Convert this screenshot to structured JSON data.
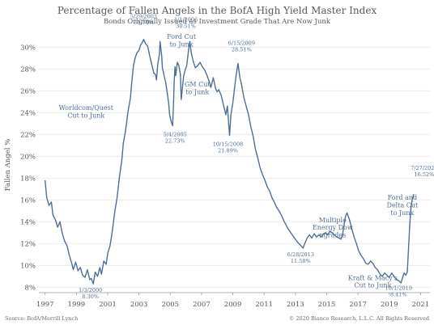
{
  "chart_data": {
    "type": "line",
    "title": "Percentage of Fallen Angels in the BofA High Yield Master Index",
    "subtitle": "Bonds Originally Issued as Investment Grade That Are Now Junk",
    "ylabel": "Fallen Angel %",
    "xlabel": "",
    "xlim": [
      1996.6,
      2021.6
    ],
    "ylim": [
      7.5,
      31.5
    ],
    "y_ticks": [
      8,
      10,
      12,
      14,
      16,
      18,
      20,
      22,
      24,
      26,
      28,
      30
    ],
    "y_tick_labels": [
      "8%",
      "10%",
      "12%",
      "14%",
      "16%",
      "18%",
      "20%",
      "22%",
      "24%",
      "26%",
      "28%",
      "30%"
    ],
    "x_ticks": [
      1997,
      1999,
      2001,
      2003,
      2005,
      2007,
      2009,
      2011,
      2013,
      2015,
      2017,
      2019,
      2021
    ],
    "x_tick_labels": [
      "1997",
      "1999",
      "2001",
      "2003",
      "2005",
      "2007",
      "2009",
      "2011",
      "2013",
      "2015",
      "2017",
      "2019",
      "2021"
    ],
    "grid": "horizontal",
    "line_color": "#4f6e95",
    "series": [
      {
        "points": [
          [
            1997.0,
            17.8
          ],
          [
            1997.1,
            16.2
          ],
          [
            1997.25,
            15.5
          ],
          [
            1997.4,
            15.8
          ],
          [
            1997.5,
            14.6
          ],
          [
            1997.65,
            14.2
          ],
          [
            1997.8,
            13.5
          ],
          [
            1997.95,
            14.0
          ],
          [
            1998.1,
            12.9
          ],
          [
            1998.25,
            12.2
          ],
          [
            1998.4,
            11.8
          ],
          [
            1998.55,
            10.9
          ],
          [
            1998.7,
            10.2
          ],
          [
            1998.8,
            9.6
          ],
          [
            1998.95,
            10.3
          ],
          [
            1999.1,
            9.5
          ],
          [
            1999.25,
            9.8
          ],
          [
            1999.4,
            9.1
          ],
          [
            1999.55,
            8.9
          ],
          [
            1999.7,
            9.6
          ],
          [
            1999.85,
            8.7
          ],
          [
            1999.95,
            8.8
          ],
          [
            2000.08,
            8.3
          ],
          [
            2000.2,
            9.4
          ],
          [
            2000.35,
            9.0
          ],
          [
            2000.5,
            9.8
          ],
          [
            2000.6,
            9.2
          ],
          [
            2000.75,
            10.4
          ],
          [
            2000.9,
            10.1
          ],
          [
            2001.0,
            11.1
          ],
          [
            2001.15,
            11.8
          ],
          [
            2001.3,
            13.2
          ],
          [
            2001.45,
            14.9
          ],
          [
            2001.6,
            16.2
          ],
          [
            2001.75,
            18.1
          ],
          [
            2001.9,
            19.6
          ],
          [
            2002.0,
            21.2
          ],
          [
            2002.15,
            22.4
          ],
          [
            2002.3,
            24.1
          ],
          [
            2002.45,
            25.3
          ],
          [
            2002.55,
            27.0
          ],
          [
            2002.65,
            28.3
          ],
          [
            2002.75,
            29.0
          ],
          [
            2002.88,
            29.5
          ],
          [
            2003.0,
            29.7
          ],
          [
            2003.1,
            30.2
          ],
          [
            2003.2,
            30.4
          ],
          [
            2003.3,
            30.7
          ],
          [
            2003.42,
            30.3
          ],
          [
            2003.55,
            30.1
          ],
          [
            2003.7,
            29.1
          ],
          [
            2003.82,
            28.4
          ],
          [
            2003.95,
            27.6
          ],
          [
            2004.05,
            27.5
          ],
          [
            2004.12,
            27.0
          ],
          [
            2004.2,
            28.4
          ],
          [
            2004.3,
            29.3
          ],
          [
            2004.35,
            30.5
          ],
          [
            2004.45,
            29.2
          ],
          [
            2004.5,
            28.1
          ],
          [
            2004.6,
            27.4
          ],
          [
            2004.7,
            26.8
          ],
          [
            2004.8,
            25.9
          ],
          [
            2004.9,
            24.8
          ],
          [
            2004.95,
            23.9
          ],
          [
            2005.05,
            23.2
          ],
          [
            2005.15,
            22.8
          ],
          [
            2005.2,
            24.6
          ],
          [
            2005.25,
            26.8
          ],
          [
            2005.3,
            28.2
          ],
          [
            2005.35,
            27.4
          ],
          [
            2005.45,
            28.6
          ],
          [
            2005.55,
            28.3
          ],
          [
            2005.65,
            27.5
          ],
          [
            2005.7,
            25.2
          ],
          [
            2005.85,
            27.3
          ],
          [
            2005.95,
            27.9
          ],
          [
            2006.05,
            28.3
          ],
          [
            2006.15,
            29.5
          ],
          [
            2006.25,
            30.5
          ],
          [
            2006.35,
            29.4
          ],
          [
            2006.45,
            28.8
          ],
          [
            2006.6,
            28.1
          ],
          [
            2006.75,
            28.3
          ],
          [
            2006.9,
            28.6
          ],
          [
            2007.05,
            28.2
          ],
          [
            2007.2,
            27.9
          ],
          [
            2007.35,
            27.4
          ],
          [
            2007.5,
            26.8
          ],
          [
            2007.6,
            26.3
          ],
          [
            2007.75,
            27.2
          ],
          [
            2007.9,
            26.2
          ],
          [
            2008.0,
            25.9
          ],
          [
            2008.1,
            26.1
          ],
          [
            2008.25,
            25.6
          ],
          [
            2008.4,
            24.7
          ],
          [
            2008.55,
            23.8
          ],
          [
            2008.65,
            24.6
          ],
          [
            2008.79,
            21.9
          ],
          [
            2008.88,
            23.8
          ],
          [
            2009.0,
            24.9
          ],
          [
            2009.12,
            26.4
          ],
          [
            2009.22,
            27.5
          ],
          [
            2009.33,
            28.5
          ],
          [
            2009.45,
            27.2
          ],
          [
            2009.55,
            26.6
          ],
          [
            2009.7,
            25.4
          ],
          [
            2009.85,
            24.6
          ],
          [
            2010.0,
            23.8
          ],
          [
            2010.15,
            22.7
          ],
          [
            2010.3,
            21.8
          ],
          [
            2010.45,
            20.6
          ],
          [
            2010.6,
            19.8
          ],
          [
            2010.75,
            18.9
          ],
          [
            2010.9,
            18.3
          ],
          [
            2011.05,
            17.8
          ],
          [
            2011.2,
            17.2
          ],
          [
            2011.35,
            16.8
          ],
          [
            2011.5,
            16.2
          ],
          [
            2011.65,
            15.8
          ],
          [
            2011.8,
            15.3
          ],
          [
            2011.95,
            15.0
          ],
          [
            2012.1,
            14.6
          ],
          [
            2012.25,
            14.1
          ],
          [
            2012.4,
            13.7
          ],
          [
            2012.55,
            13.3
          ],
          [
            2012.7,
            13.0
          ],
          [
            2012.85,
            12.7
          ],
          [
            2013.0,
            12.4
          ],
          [
            2013.15,
            12.1
          ],
          [
            2013.3,
            11.9
          ],
          [
            2013.49,
            11.58
          ],
          [
            2013.6,
            12.0
          ],
          [
            2013.75,
            12.5
          ],
          [
            2013.9,
            12.8
          ],
          [
            2014.05,
            12.5
          ],
          [
            2014.2,
            12.9
          ],
          [
            2014.35,
            12.6
          ],
          [
            2014.5,
            12.8
          ],
          [
            2014.65,
            12.6
          ],
          [
            2014.8,
            12.9
          ],
          [
            2014.95,
            13.0
          ],
          [
            2015.05,
            12.8
          ],
          [
            2015.2,
            13.1
          ],
          [
            2015.35,
            13.0
          ],
          [
            2015.5,
            12.8
          ],
          [
            2015.65,
            12.6
          ],
          [
            2015.8,
            12.5
          ],
          [
            2015.9,
            12.4
          ],
          [
            2016.0,
            12.7
          ],
          [
            2016.1,
            13.6
          ],
          [
            2016.2,
            14.5
          ],
          [
            2016.3,
            14.8
          ],
          [
            2016.45,
            14.2
          ],
          [
            2016.6,
            13.4
          ],
          [
            2016.75,
            12.6
          ],
          [
            2016.9,
            12.0
          ],
          [
            2017.05,
            11.3
          ],
          [
            2017.2,
            10.9
          ],
          [
            2017.35,
            10.6
          ],
          [
            2017.5,
            10.2
          ],
          [
            2017.65,
            10.1
          ],
          [
            2017.8,
            10.4
          ],
          [
            2017.95,
            10.2
          ],
          [
            2018.1,
            9.8
          ],
          [
            2018.25,
            9.6
          ],
          [
            2018.4,
            9.2
          ],
          [
            2018.55,
            9.0
          ],
          [
            2018.7,
            9.3
          ],
          [
            2018.85,
            9.1
          ],
          [
            2019.0,
            8.9
          ],
          [
            2019.15,
            9.3
          ],
          [
            2019.3,
            9.0
          ],
          [
            2019.45,
            8.7
          ],
          [
            2019.6,
            8.6
          ],
          [
            2019.75,
            8.4
          ],
          [
            2019.85,
            8.9
          ],
          [
            2019.95,
            9.3
          ],
          [
            2020.05,
            9.1
          ],
          [
            2020.15,
            9.4
          ],
          [
            2020.22,
            11.2
          ],
          [
            2020.3,
            13.5
          ],
          [
            2020.38,
            15.2
          ],
          [
            2020.46,
            16.0
          ],
          [
            2020.56,
            16.52
          ]
        ]
      }
    ],
    "annotations": [
      {
        "lines": [
          "5/29/2003",
          "30.74%"
        ],
        "x": 2003.4,
        "y": 30.74
      },
      {
        "lines": [
          "1/1/2006",
          "30.51%"
        ],
        "x": 2006.0,
        "y": 30.51
      },
      {
        "lines": [
          "Ford Cut",
          "to Junk"
        ],
        "x": 2005.3,
        "y": 28.4
      },
      {
        "lines": [
          "6/15/2009",
          "28.51%"
        ],
        "x": 2009.45,
        "y": 28.51
      },
      {
        "lines": [
          "Worldcom/Quest",
          "Cut to Junk"
        ],
        "x": 2002.0,
        "y": 23.5
      },
      {
        "lines": [
          "GM Cut",
          "to Junk"
        ],
        "x": 2005.7,
        "y": 25.2
      },
      {
        "lines": [
          "5/4/2005",
          "22.73%"
        ],
        "x": 2005.15,
        "y": 22.73
      },
      {
        "lines": [
          "10/15/2008",
          "21.89%"
        ],
        "x": 2008.79,
        "y": 21.89
      },
      {
        "lines": [
          "7/27/2020",
          "16.52%"
        ],
        "x": 2020.56,
        "y": 16.52
      },
      {
        "lines": [
          "Multiple",
          "Energy Dow",
          "ngrades"
        ],
        "x": 2016.0,
        "y": 12.7
      },
      {
        "lines": [
          "Ford and",
          "Delta Cut",
          "to Junk"
        ],
        "x": 2020.3,
        "y": 13.5
      },
      {
        "lines": [
          "6/28/2013",
          "11.58%"
        ],
        "x": 2013.49,
        "y": 11.58
      },
      {
        "lines": [
          "Kraft & Macy's",
          "Cut to Junk"
        ],
        "x": 2018.0,
        "y": 10.0
      },
      {
        "lines": [
          "1/3/2000",
          "8.30%"
        ],
        "x": 2000.0,
        "y": 8.3
      },
      {
        "lines": [
          "10/1/2019",
          "8.41%"
        ],
        "x": 2019.75,
        "y": 8.41
      }
    ]
  },
  "footer": {
    "source": "Source: BofA/Merrill Lynch",
    "copyright": "© 2020 Bianco Research, L.L.C. All Rights Reserved"
  }
}
